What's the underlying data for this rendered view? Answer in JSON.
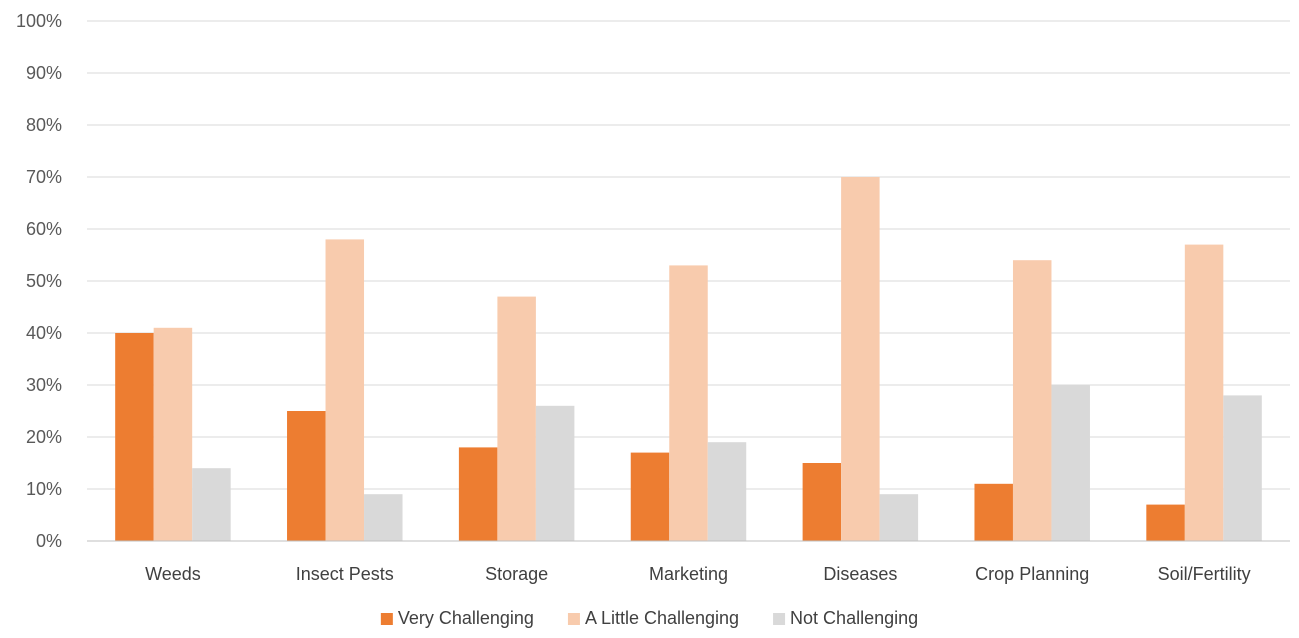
{
  "chart_data": {
    "type": "bar",
    "title": "",
    "xlabel": "",
    "ylabel": "",
    "categories": [
      "Weeds",
      "Insect Pests",
      "Storage",
      "Marketing",
      "Diseases",
      "Crop Planning",
      "Soil/Fertility"
    ],
    "series": [
      {
        "name": "Very Challenging",
        "color": "#ed7d31",
        "values": [
          40,
          25,
          18,
          17,
          15,
          11,
          7
        ]
      },
      {
        "name": "A Little Challenging",
        "color": "#f8cbad",
        "values": [
          41,
          58,
          47,
          53,
          70,
          54,
          57
        ]
      },
      {
        "name": "Not Challenging",
        "color": "#d9d9d9",
        "values": [
          14,
          9,
          26,
          19,
          9,
          30,
          28
        ]
      }
    ],
    "ylim": [
      0,
      100
    ],
    "yticks": [
      0,
      10,
      20,
      30,
      40,
      50,
      60,
      70,
      80,
      90,
      100
    ],
    "ytick_format": "{v}%",
    "grid": true,
    "legend_position": "bottom"
  }
}
